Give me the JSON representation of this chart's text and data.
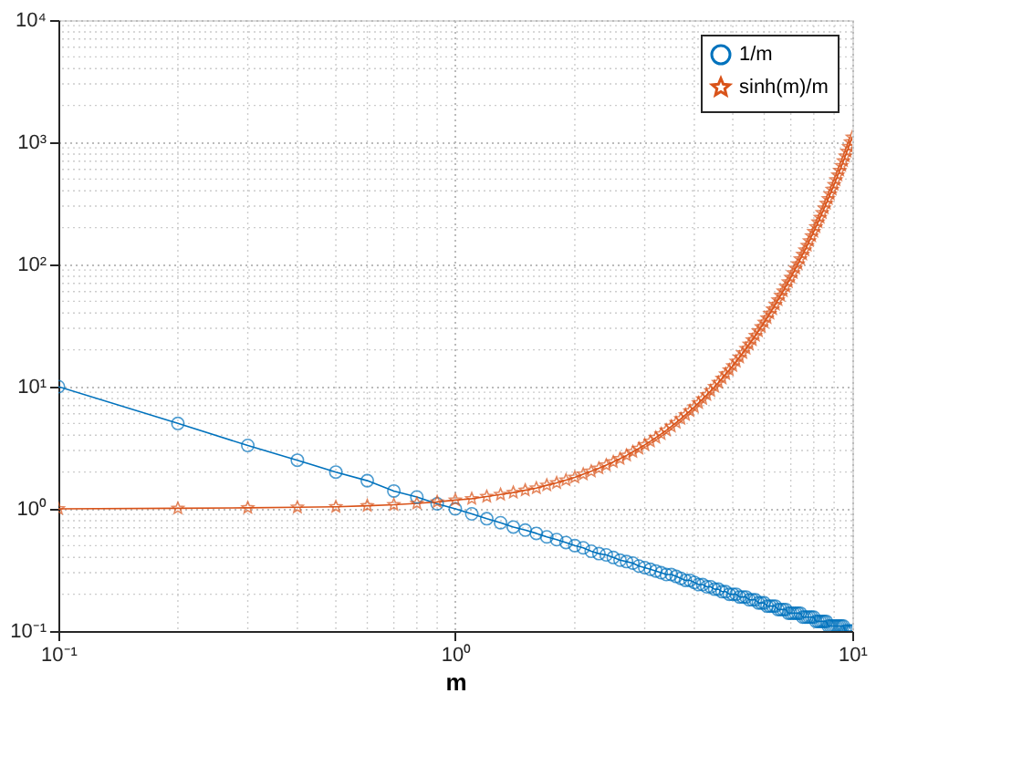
{
  "chart_data": {
    "type": "line",
    "xlabel": "m",
    "log": "xy",
    "grid": true,
    "legend": "top right",
    "x": [
      0.1,
      0.2,
      0.3,
      0.4,
      0.5,
      0.6,
      0.7,
      0.8,
      0.9,
      1.0,
      1.1,
      1.2,
      1.3,
      1.4,
      1.5,
      1.6,
      1.7,
      1.8,
      1.9,
      2.0,
      2.1,
      2.2,
      2.3,
      2.4,
      2.5,
      2.6,
      2.7,
      2.8,
      2.9,
      3.0,
      3.1,
      3.2,
      3.3,
      3.4,
      3.5,
      3.6,
      3.7,
      3.8,
      3.9,
      4.0,
      4.1,
      4.2,
      4.3,
      4.4,
      4.5,
      4.6,
      4.7,
      4.8,
      4.9,
      5.0,
      5.1,
      5.2,
      5.3,
      5.4,
      5.5,
      5.6,
      5.7,
      5.8,
      5.9,
      6.0,
      6.1,
      6.2,
      6.3,
      6.4,
      6.5,
      6.6,
      6.7,
      6.8,
      6.9,
      7.0,
      7.1,
      7.2,
      7.3,
      7.4,
      7.5,
      7.6,
      7.7,
      7.8,
      7.9,
      8.0,
      8.1,
      8.2,
      8.3,
      8.4,
      8.5,
      8.6,
      8.7,
      8.8,
      8.9,
      9.0,
      9.1,
      9.2,
      9.3,
      9.4,
      9.5,
      9.6,
      9.7,
      9.8,
      9.9,
      10.0
    ],
    "series": [
      {
        "name": "1/m",
        "color": "#0072bd",
        "marker": "circle",
        "values": [
          10,
          5,
          3.3,
          2.5,
          2,
          1.7,
          1.4,
          1.25,
          1.1,
          1,
          0.91,
          0.83,
          0.77,
          0.71,
          0.67,
          0.63,
          0.59,
          0.56,
          0.53,
          0.5,
          0.48,
          0.45,
          0.43,
          0.42,
          0.4,
          0.38,
          0.37,
          0.36,
          0.34,
          0.33,
          0.32,
          0.31,
          0.3,
          0.29,
          0.29,
          0.28,
          0.27,
          0.26,
          0.26,
          0.25,
          0.24,
          0.24,
          0.23,
          0.23,
          0.22,
          0.22,
          0.21,
          0.21,
          0.2,
          0.2,
          0.2,
          0.19,
          0.19,
          0.19,
          0.18,
          0.18,
          0.18,
          0.17,
          0.17,
          0.17,
          0.16,
          0.16,
          0.16,
          0.16,
          0.15,
          0.15,
          0.15,
          0.15,
          0.14,
          0.14,
          0.14,
          0.14,
          0.14,
          0.14,
          0.13,
          0.13,
          0.13,
          0.13,
          0.13,
          0.13,
          0.12,
          0.12,
          0.12,
          0.12,
          0.12,
          0.12,
          0.11,
          0.11,
          0.11,
          0.11,
          0.11,
          0.11,
          0.11,
          0.11,
          0.11,
          0.1,
          0.1,
          0.1,
          0.1,
          0.1
        ]
      },
      {
        "name": "sinh(m)/m",
        "color": "#d95319",
        "marker": "star",
        "values": [
          1.0,
          1.01,
          1.02,
          1.03,
          1.04,
          1.06,
          1.08,
          1.11,
          1.14,
          1.18,
          1.21,
          1.26,
          1.31,
          1.36,
          1.42,
          1.48,
          1.56,
          1.63,
          1.72,
          1.81,
          1.92,
          2.03,
          2.15,
          2.28,
          2.42,
          2.57,
          2.74,
          2.93,
          3.12,
          3.34,
          3.57,
          3.83,
          4.1,
          4.4,
          4.73,
          5.08,
          5.46,
          5.88,
          6.33,
          6.82,
          7.36,
          7.94,
          8.57,
          9.25,
          10.0,
          10.8,
          11.7,
          12.7,
          13.7,
          14.8,
          16.1,
          17.4,
          18.9,
          20.5,
          22.2,
          24.1,
          26.2,
          28.5,
          30.9,
          33.6,
          36.5,
          39.7,
          43.2,
          47.0,
          51.2,
          55.7,
          60.6,
          66.0,
          71.9,
          78.3,
          85.3,
          93.0,
          101,
          111,
          121,
          131,
          143,
          156,
          171,
          186,
          203,
          222,
          242,
          265,
          289,
          316,
          345,
          377,
          412,
          450,
          492,
          538,
          588,
          643,
          703,
          769,
          841,
          920,
          1007,
          1101
        ]
      }
    ],
    "xlim": [
      0.1,
      10
    ],
    "xticks": [
      {
        "value": 0.1,
        "label": "10⁻¹"
      },
      {
        "value": 1,
        "label": "10⁰"
      },
      {
        "value": 10,
        "label": "10¹"
      }
    ],
    "ylim": [
      0.1,
      10000
    ],
    "yticks": [
      {
        "value": 0.1,
        "label": "10⁻¹"
      },
      {
        "value": 1,
        "label": "10⁰"
      },
      {
        "value": 10,
        "label": "10¹"
      },
      {
        "value": 100,
        "label": "10²"
      },
      {
        "value": 1000,
        "label": "10³"
      },
      {
        "value": 10000,
        "label": "10⁴"
      }
    ]
  }
}
